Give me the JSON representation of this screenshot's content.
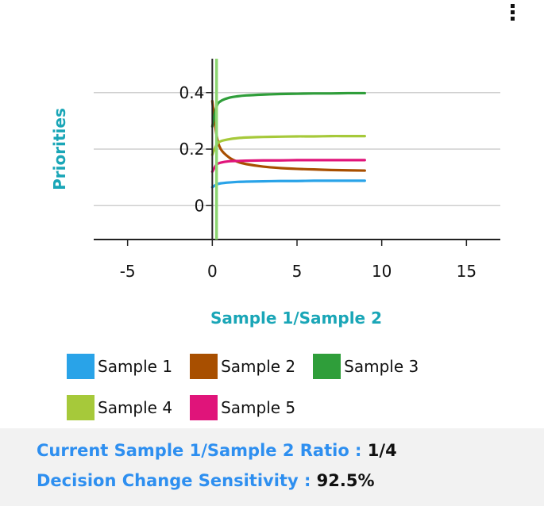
{
  "colors": {
    "accent": "#1aa6b7",
    "label_blue": "#2e8ff0",
    "marker": "#8dd672",
    "axis": "#222222",
    "grid": "#cfcfcf"
  },
  "menu": {
    "icon": "vertical-ellipsis-icon"
  },
  "chart_data": {
    "type": "line",
    "xlabel": "Sample 1/Sample 2",
    "ylabel": "Priorities",
    "xlim": [
      -7,
      17
    ],
    "ylim": [
      -0.12,
      0.52
    ],
    "xticks": [
      -5,
      0,
      5,
      10,
      15
    ],
    "yticks": [
      0,
      0.2,
      0.4
    ],
    "xtick_labels": [
      "-5",
      "0",
      "5",
      "10",
      "15"
    ],
    "ytick_labels": [
      "0",
      "0.2",
      "0.4"
    ],
    "grid": "horizontal",
    "marker_x": 0.25,
    "x": [
      0,
      0.25,
      0.5,
      1,
      1.5,
      2,
      3,
      4,
      5,
      6,
      7,
      8,
      9
    ],
    "series": [
      {
        "name": "Sample 1",
        "color": "#29a3e8",
        "values": [
          0.065,
          0.075,
          0.079,
          0.082,
          0.084,
          0.085,
          0.086,
          0.087,
          0.087,
          0.088,
          0.088,
          0.088,
          0.088
        ]
      },
      {
        "name": "Sample 2",
        "color": "#a84f00",
        "values": [
          0.37,
          0.25,
          0.2,
          0.17,
          0.155,
          0.147,
          0.138,
          0.133,
          0.13,
          0.128,
          0.126,
          0.125,
          0.124
        ]
      },
      {
        "name": "Sample 3",
        "color": "#2f9e3a",
        "values": [
          0.28,
          0.35,
          0.37,
          0.382,
          0.387,
          0.39,
          0.393,
          0.395,
          0.396,
          0.397,
          0.397,
          0.398,
          0.398
        ]
      },
      {
        "name": "Sample 4",
        "color": "#a6c93a",
        "values": [
          0.18,
          0.215,
          0.228,
          0.235,
          0.239,
          0.241,
          0.243,
          0.244,
          0.245,
          0.245,
          0.246,
          0.246,
          0.246
        ]
      },
      {
        "name": "Sample 5",
        "color": "#e0147a",
        "values": [
          0.12,
          0.145,
          0.152,
          0.157,
          0.158,
          0.159,
          0.16,
          0.16,
          0.161,
          0.161,
          0.161,
          0.161,
          0.161
        ]
      }
    ]
  },
  "footer": {
    "ratio_label": "Current Sample 1/Sample 2 Ratio : ",
    "ratio_value": "1/4",
    "sensitivity_label": "Decision Change Sensitivity : ",
    "sensitivity_value": "92.5%"
  }
}
